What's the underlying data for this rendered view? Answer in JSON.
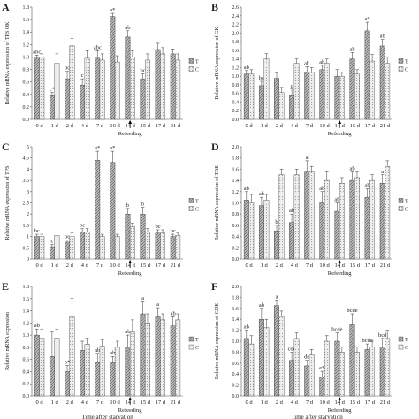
{
  "figure": {
    "x_axis_caption": "Time after starvation",
    "refeeding_label": "Refeeding"
  },
  "chart_data": [
    {
      "type": "bar",
      "panel_letter": "A",
      "ylabel": "Relative mRNA expression of TPS OK",
      "ylim": [
        0,
        1.8
      ],
      "yticks": [
        0,
        0.2,
        0.4,
        0.6,
        0.8,
        1.0,
        1.2,
        1.4,
        1.6,
        1.8
      ],
      "categories": [
        "0 d",
        "1 d",
        "2 d",
        "4 d",
        "7 d",
        "10 d",
        "14 d",
        "15 d",
        "17 d",
        "21 d"
      ],
      "series": [
        {
          "name": "T",
          "values": [
            0.98,
            0.38,
            0.65,
            0.55,
            0.98,
            1.65,
            1.32,
            0.65,
            1.12,
            1.05
          ]
        },
        {
          "name": "C",
          "values": [
            1.0,
            0.9,
            1.18,
            0.98,
            0.95,
            0.92,
            1.0,
            0.95,
            1.05,
            0.95
          ]
        }
      ],
      "errors": [
        [
          0.05,
          0.05,
          0.12,
          0.1,
          0.12,
          0.05,
          0.1,
          0.08,
          0.1,
          0.08
        ],
        [
          0.05,
          0.15,
          0.12,
          0.12,
          0.1,
          0.1,
          0.1,
          0.1,
          0.1,
          0.1
        ]
      ],
      "labels": [
        [
          "abc",
          "c*",
          "bc",
          "c",
          "abc",
          "a*",
          "ab",
          "bc",
          "",
          ""
        ],
        [
          "",
          "",
          "",
          "",
          "",
          "",
          "",
          "",
          "",
          ""
        ]
      ],
      "legend": [
        "T",
        "C"
      ],
      "refeeding_arrow_at": 6.5
    },
    {
      "type": "bar",
      "panel_letter": "B",
      "ylabel": "Relative mRNA expression of GK",
      "ylim": [
        0,
        2.6
      ],
      "yticks": [
        0,
        0.2,
        0.4,
        0.6,
        0.8,
        1.0,
        1.2,
        1.4,
        1.6,
        1.8,
        2.0,
        2.2,
        2.4,
        2.6
      ],
      "categories": [
        "0 d",
        "1 d",
        "2 d",
        "4 d",
        "7 d",
        "10 d",
        "14 d",
        "15 d",
        "17 d",
        "21 d"
      ],
      "series": [
        {
          "name": "T",
          "values": [
            1.05,
            0.78,
            0.95,
            0.55,
            1.1,
            1.15,
            1.0,
            1.4,
            2.05,
            1.7
          ]
        },
        {
          "name": "C",
          "values": [
            1.05,
            1.4,
            0.62,
            1.3,
            1.1,
            1.3,
            1.0,
            1.05,
            1.35,
            1.3
          ]
        }
      ],
      "errors": [
        [
          0.08,
          0.1,
          0.12,
          0.15,
          0.12,
          0.1,
          0.15,
          0.15,
          0.2,
          0.15
        ],
        [
          0.1,
          0.12,
          0.12,
          0.1,
          0.1,
          0.1,
          0.1,
          0.1,
          0.15,
          0.15
        ]
      ],
      "labels": [
        [
          "ab",
          "bc",
          "",
          "c",
          "ab",
          "ab",
          "",
          "ab",
          "a*",
          "ab"
        ],
        [
          "",
          "",
          "",
          "",
          "",
          "",
          "",
          "",
          "",
          ""
        ]
      ],
      "legend": [
        "T",
        "C"
      ],
      "refeeding_arrow_at": 6.5
    },
    {
      "type": "bar",
      "panel_letter": "C",
      "ylabel": "Relative mRNA expression of TPS",
      "ylim": [
        0,
        5
      ],
      "yticks": [
        0,
        0.5,
        1,
        1.5,
        2,
        2.5,
        3,
        3.5,
        4,
        4.5,
        5
      ],
      "categories": [
        "0 d",
        "1 d",
        "2 d",
        "4 d",
        "7 d",
        "10 d",
        "14 d",
        "15 d",
        "17 d",
        "21 d"
      ],
      "series": [
        {
          "name": "T",
          "values": [
            1.0,
            0.55,
            0.75,
            1.2,
            4.4,
            4.3,
            2.0,
            2.0,
            1.15,
            1.0
          ]
        },
        {
          "name": "C",
          "values": [
            1.0,
            1.05,
            1.0,
            1.2,
            1.0,
            1.0,
            1.45,
            1.2,
            1.15,
            1.05
          ]
        }
      ],
      "errors": [
        [
          0.1,
          0.1,
          0.1,
          0.15,
          0.4,
          0.5,
          0.25,
          0.3,
          0.15,
          0.1
        ],
        [
          0.1,
          0.15,
          0.15,
          0.15,
          0.1,
          0.1,
          0.15,
          0.15,
          0.15,
          0.1
        ]
      ],
      "labels": [
        [
          "bc",
          "c",
          "bc",
          "bc",
          "a*",
          "a*",
          "b",
          "b",
          "bc",
          "bc"
        ],
        [
          "",
          "",
          "",
          "",
          "",
          "",
          "",
          "",
          "",
          ""
        ]
      ],
      "legend": [
        "T",
        "C"
      ],
      "refeeding_arrow_at": 6.5
    },
    {
      "type": "bar",
      "panel_letter": "D",
      "ylabel": "Relative mRNA expression of TRE",
      "ylim": [
        0,
        2.0
      ],
      "yticks": [
        0,
        0.2,
        0.4,
        0.6,
        0.8,
        1.0,
        1.2,
        1.4,
        1.6,
        1.8,
        2.0
      ],
      "categories": [
        "0 d",
        "1 d",
        "2 d",
        "4 d",
        "7 d",
        "10 d",
        "14 d",
        "15 d",
        "17 d",
        "21 d"
      ],
      "series": [
        {
          "name": "T",
          "values": [
            1.05,
            0.95,
            0.5,
            0.65,
            1.55,
            1.0,
            0.85,
            1.4,
            1.1,
            1.35
          ]
        },
        {
          "name": "C",
          "values": [
            1.0,
            1.05,
            1.5,
            1.5,
            1.55,
            1.4,
            1.35,
            1.45,
            1.4,
            1.65
          ]
        }
      ],
      "errors": [
        [
          0.15,
          0.15,
          0.1,
          0.15,
          0.2,
          0.2,
          0.15,
          0.15,
          0.15,
          0.15
        ],
        [
          0.15,
          0.1,
          0.1,
          0.1,
          0.1,
          0.15,
          0.1,
          0.1,
          0.1,
          0.1
        ]
      ],
      "labels": [
        [
          "ab",
          "ab",
          "b",
          "ab",
          "a",
          "ab",
          "ab",
          "ab",
          "ab",
          "a"
        ],
        [
          "",
          "",
          "",
          "",
          "",
          "",
          "",
          "",
          "",
          ""
        ]
      ],
      "legend": [
        "T",
        "C"
      ],
      "refeeding_arrow_at": 6.5
    },
    {
      "type": "bar",
      "panel_letter": "E",
      "ylabel": "Relative mRNA expression",
      "ylim": [
        0,
        1.8
      ],
      "yticks": [
        0,
        0.2,
        0.4,
        0.6,
        0.8,
        1.0,
        1.2,
        1.4,
        1.6,
        1.8
      ],
      "categories": [
        "0 d",
        "1 d",
        "2 d",
        "4 d",
        "7 d",
        "10 d",
        "14 d",
        "15 d",
        "17 d",
        "21 d"
      ],
      "series": [
        {
          "name": "T",
          "values": [
            1.0,
            0.65,
            0.4,
            0.75,
            0.55,
            0.55,
            0.8,
            1.35,
            1.3,
            1.15
          ]
        },
        {
          "name": "C",
          "values": [
            0.95,
            0.95,
            1.3,
            0.85,
            0.82,
            0.8,
            1.05,
            1.2,
            1.25,
            1.25
          ]
        }
      ],
      "errors": [
        [
          0.1,
          0.4,
          0.1,
          0.15,
          0.15,
          0.1,
          0.2,
          0.2,
          0.15,
          0.15
        ],
        [
          0.15,
          0.15,
          0.3,
          0.1,
          0.1,
          0.1,
          0.2,
          0.15,
          0.1,
          0.1
        ]
      ],
      "labels": [
        [
          "ab",
          "",
          "b*",
          "",
          "ab",
          "ab",
          "ab",
          "a",
          "a",
          "ab"
        ],
        [
          "",
          "",
          "",
          "",
          "",
          "",
          "",
          "",
          "",
          ""
        ]
      ],
      "legend": [
        "T",
        "C"
      ],
      "refeeding_arrow_at": 6.5
    },
    {
      "type": "bar",
      "panel_letter": "F",
      "ylabel": "Relative mRNA expression of GDE",
      "ylim": [
        0,
        2.0
      ],
      "yticks": [
        0,
        0.2,
        0.4,
        0.6,
        0.8,
        1.0,
        1.2,
        1.4,
        1.6,
        1.8,
        2.0
      ],
      "categories": [
        "0 d",
        "1 d",
        "2 d",
        "4 d",
        "7 d",
        "10 d",
        "14 d",
        "15 d",
        "17 d",
        "21 d"
      ],
      "series": [
        {
          "name": "T",
          "values": [
            1.05,
            1.4,
            1.65,
            0.65,
            0.55,
            0.35,
            1.0,
            1.3,
            0.85,
            0.9
          ]
        },
        {
          "name": "C",
          "values": [
            0.95,
            1.25,
            1.45,
            1.05,
            0.75,
            1.0,
            0.8,
            0.8,
            0.9,
            1.05
          ]
        }
      ],
      "errors": [
        [
          0.15,
          0.2,
          0.1,
          0.15,
          0.1,
          0.1,
          0.15,
          0.2,
          0.1,
          0.15
        ],
        [
          0.15,
          0.15,
          0.1,
          0.1,
          0.1,
          0.1,
          0.1,
          0.1,
          0.1,
          0.15
        ]
      ],
      "labels": [
        [
          "ab",
          "ab",
          "a",
          "cde",
          "de",
          "e*",
          "bcde",
          "bcde",
          "bcde",
          "bcd"
        ],
        [
          "",
          "",
          "",
          "",
          "",
          "",
          "",
          "",
          "",
          ""
        ]
      ],
      "legend": [
        "T",
        "C"
      ],
      "refeeding_arrow_at": 6.5
    }
  ]
}
